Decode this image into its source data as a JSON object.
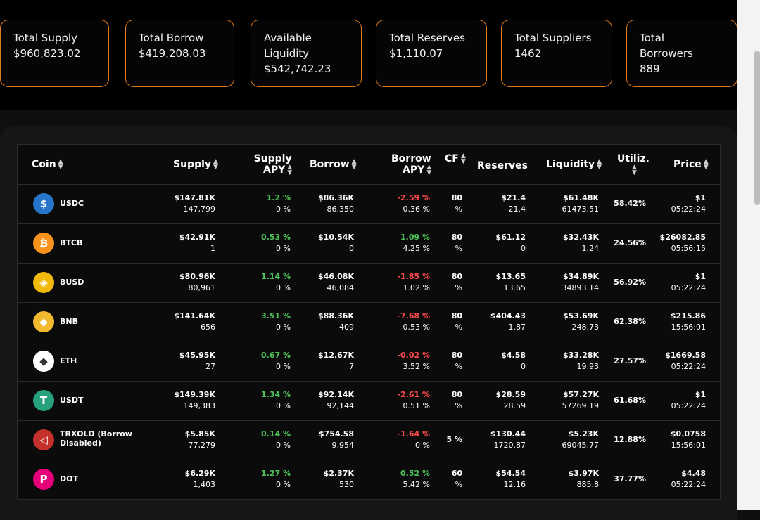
{
  "stats": [
    {
      "label": "Total Supply",
      "value": "$960,823.02"
    },
    {
      "label": "Total Borrow",
      "value": "$419,208.03"
    },
    {
      "label": "Available Liquidity",
      "value": "$542,742.23"
    },
    {
      "label": "Total Reserves",
      "value": "$1,110.07"
    },
    {
      "label": "Total Suppliers",
      "value": "1462"
    },
    {
      "label": "Total Borrowers",
      "value": "889"
    }
  ],
  "table": {
    "headers": {
      "coin": "Coin",
      "supply": "Supply",
      "supply_apy_1": "Supply",
      "supply_apy_2": "APY",
      "borrow": "Borrow",
      "borrow_apy_1": "Borrow",
      "borrow_apy_2": "APY",
      "cf": "CF",
      "reserves": "Reserves",
      "liquidity": "Liquidity",
      "utiliz": "Utiliz.",
      "price": "Price"
    },
    "rows": [
      {
        "coin": "USDC",
        "icon": "usdc-icon",
        "supply": "$147.81K",
        "supply_sub": "147,799",
        "supply_apy": "1.2 %",
        "supply_apy_sub": "0 %",
        "supply_apy_color": "green",
        "borrow": "$86.36K",
        "borrow_sub": "86,350",
        "borrow_apy": "-2.59 %",
        "borrow_apy_sub": "0.36 %",
        "borrow_apy_color": "red",
        "cf": "80",
        "cf_sub": "%",
        "reserves": "$21.4",
        "reserves_sub": "21.4",
        "liquidity": "$61.48K",
        "liquidity_sub": "61473.51",
        "utiliz": "58.42%",
        "price": "$1",
        "price_sub": "05:22:24"
      },
      {
        "coin": "BTCB",
        "icon": "btcb-icon",
        "supply": "$42.91K",
        "supply_sub": "1",
        "supply_apy": "0.53 %",
        "supply_apy_sub": "0 %",
        "supply_apy_color": "green",
        "borrow": "$10.54K",
        "borrow_sub": "0",
        "borrow_apy": "1.09 %",
        "borrow_apy_sub": "4.25 %",
        "borrow_apy_color": "green",
        "cf": "80",
        "cf_sub": "%",
        "reserves": "$61.12",
        "reserves_sub": "0",
        "liquidity": "$32.43K",
        "liquidity_sub": "1.24",
        "utiliz": "24.56%",
        "price": "$26082.85",
        "price_sub": "05:56:15"
      },
      {
        "coin": "BUSD",
        "icon": "busd-icon",
        "supply": "$80.96K",
        "supply_sub": "80,961",
        "supply_apy": "1.14 %",
        "supply_apy_sub": "0 %",
        "supply_apy_color": "green",
        "borrow": "$46.08K",
        "borrow_sub": "46,084",
        "borrow_apy": "-1.85 %",
        "borrow_apy_sub": "1.02 %",
        "borrow_apy_color": "red",
        "cf": "80",
        "cf_sub": "%",
        "reserves": "$13.65",
        "reserves_sub": "13.65",
        "liquidity": "$34.89K",
        "liquidity_sub": "34893.14",
        "utiliz": "56.92%",
        "price": "$1",
        "price_sub": "05:22:24"
      },
      {
        "coin": "BNB",
        "icon": "bnb-icon",
        "supply": "$141.64K",
        "supply_sub": "656",
        "supply_apy": "3.51 %",
        "supply_apy_sub": "0 %",
        "supply_apy_color": "green",
        "borrow": "$88.36K",
        "borrow_sub": "409",
        "borrow_apy": "-7.68 %",
        "borrow_apy_sub": "0.53 %",
        "borrow_apy_color": "red",
        "cf": "80",
        "cf_sub": "%",
        "reserves": "$404.43",
        "reserves_sub": "1.87",
        "liquidity": "$53.69K",
        "liquidity_sub": "248.73",
        "utiliz": "62.38%",
        "price": "$215.86",
        "price_sub": "15:56:01"
      },
      {
        "coin": "ETH",
        "icon": "eth-icon",
        "supply": "$45.95K",
        "supply_sub": "27",
        "supply_apy": "0.67 %",
        "supply_apy_sub": "0 %",
        "supply_apy_color": "green",
        "borrow": "$12.67K",
        "borrow_sub": "7",
        "borrow_apy": "-0.02 %",
        "borrow_apy_sub": "3.52 %",
        "borrow_apy_color": "red",
        "cf": "80",
        "cf_sub": "%",
        "reserves": "$4.58",
        "reserves_sub": "0",
        "liquidity": "$33.28K",
        "liquidity_sub": "19.93",
        "utiliz": "27.57%",
        "price": "$1669.58",
        "price_sub": "05:22:24"
      },
      {
        "coin": "USDT",
        "icon": "usdt-icon",
        "supply": "$149.39K",
        "supply_sub": "149,383",
        "supply_apy": "1.34 %",
        "supply_apy_sub": "0 %",
        "supply_apy_color": "green",
        "borrow": "$92.14K",
        "borrow_sub": "92,144",
        "borrow_apy": "-2.61 %",
        "borrow_apy_sub": "0.51 %",
        "borrow_apy_color": "red",
        "cf": "80",
        "cf_sub": "%",
        "reserves": "$28.59",
        "reserves_sub": "28.59",
        "liquidity": "$57.27K",
        "liquidity_sub": "57269.19",
        "utiliz": "61.68%",
        "price": "$1",
        "price_sub": "05:22:24"
      },
      {
        "coin": "TRXOLD (Borrow Disabled)",
        "icon": "trx-icon",
        "supply": "$5.85K",
        "supply_sub": "77,279",
        "supply_apy": "0.14 %",
        "supply_apy_sub": "0 %",
        "supply_apy_color": "green",
        "borrow": "$754.58",
        "borrow_sub": "9,954",
        "borrow_apy": "-1.64 %",
        "borrow_apy_sub": "0 %",
        "borrow_apy_color": "red",
        "cf": "5 %",
        "cf_sub": "",
        "reserves": "$130.44",
        "reserves_sub": "1720.87",
        "liquidity": "$5.23K",
        "liquidity_sub": "69045.77",
        "utiliz": "12.88%",
        "price": "$0.0758",
        "price_sub": "15:56:01"
      },
      {
        "coin": "DOT",
        "icon": "dot-icon",
        "supply": "$6.29K",
        "supply_sub": "1,403",
        "supply_apy": "1.27 %",
        "supply_apy_sub": "0 %",
        "supply_apy_color": "green",
        "borrow": "$2.37K",
        "borrow_sub": "530",
        "borrow_apy": "0.52 %",
        "borrow_apy_sub": "5.42 %",
        "borrow_apy_color": "green",
        "cf": "60",
        "cf_sub": "%",
        "reserves": "$54.54",
        "reserves_sub": "12.16",
        "liquidity": "$3.97K",
        "liquidity_sub": "885.8",
        "utiliz": "37.77%",
        "price": "$4.48",
        "price_sub": "05:22:24"
      }
    ]
  },
  "colors": {
    "accent": "#e07a1f",
    "positive": "#4fc35a",
    "negative": "#ff4b4b"
  }
}
